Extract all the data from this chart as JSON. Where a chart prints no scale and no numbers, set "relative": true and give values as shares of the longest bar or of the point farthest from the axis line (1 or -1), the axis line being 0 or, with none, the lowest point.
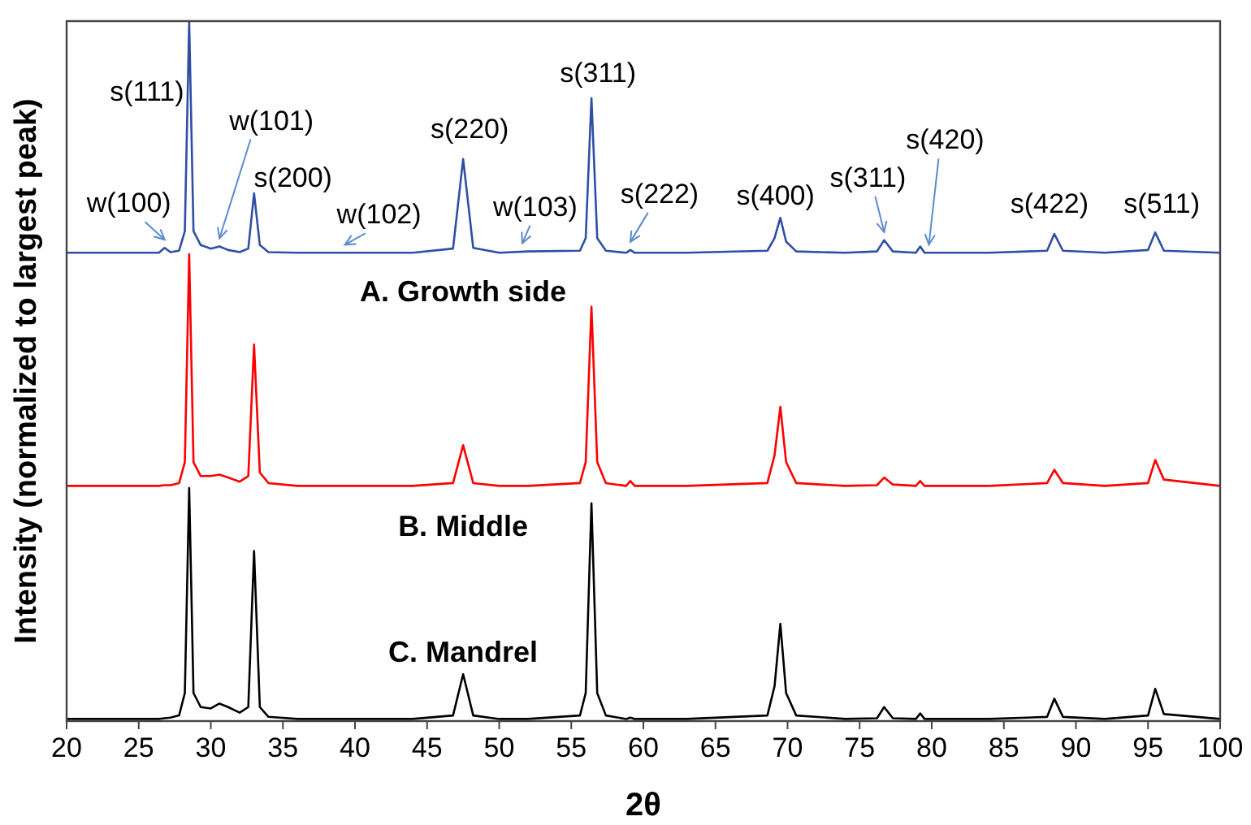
{
  "chart_data": {
    "type": "line",
    "relative": true,
    "xlabel": "2θ",
    "ylabel": "Intensity (normalized to largest peak)",
    "xlim": [
      20,
      100
    ],
    "xticks": [
      20,
      25,
      30,
      35,
      40,
      45,
      50,
      55,
      60,
      65,
      70,
      75,
      80,
      85,
      90,
      95,
      100
    ],
    "grid": false,
    "marker": "none",
    "line_style": "solid",
    "tick_labels": "x",
    "x": [
      20,
      26.4,
      26.8,
      27.2,
      27.8,
      28.2,
      28.5,
      28.8,
      29.3,
      30.0,
      30.6,
      31.2,
      32.0,
      32.6,
      33.0,
      33.4,
      34.0,
      36,
      40,
      44,
      46.8,
      47.5,
      48.2,
      50,
      52,
      55.6,
      56.0,
      56.4,
      56.8,
      57.4,
      58.8,
      59.1,
      59.4,
      63,
      68.6,
      69.1,
      69.5,
      69.9,
      70.6,
      74,
      76.2,
      76.7,
      77.3,
      78.9,
      79.2,
      79.5,
      84,
      88.0,
      88.5,
      89.1,
      92,
      95.0,
      95.5,
      96.1,
      100
    ],
    "series": [
      {
        "name": "A.  Growth side",
        "color": "#2e4fa3",
        "values": [
          0.669,
          0.669,
          0.676,
          0.67,
          0.672,
          0.7,
          1.0,
          0.7,
          0.68,
          0.675,
          0.678,
          0.673,
          0.67,
          0.675,
          0.754,
          0.68,
          0.67,
          0.669,
          0.669,
          0.669,
          0.675,
          0.803,
          0.676,
          0.669,
          0.671,
          0.672,
          0.69,
          0.89,
          0.69,
          0.672,
          0.669,
          0.673,
          0.669,
          0.669,
          0.672,
          0.69,
          0.719,
          0.685,
          0.671,
          0.669,
          0.671,
          0.687,
          0.671,
          0.669,
          0.678,
          0.669,
          0.669,
          0.672,
          0.696,
          0.672,
          0.669,
          0.673,
          0.698,
          0.672,
          0.669
        ]
      },
      {
        "name": "B.  Middle",
        "color": "#ff0000",
        "values": [
          0.336,
          0.336,
          0.337,
          0.337,
          0.34,
          0.37,
          0.667,
          0.37,
          0.35,
          0.35,
          0.352,
          0.348,
          0.342,
          0.35,
          0.538,
          0.355,
          0.34,
          0.336,
          0.336,
          0.336,
          0.34,
          0.394,
          0.34,
          0.336,
          0.336,
          0.34,
          0.37,
          0.592,
          0.37,
          0.34,
          0.336,
          0.343,
          0.336,
          0.336,
          0.34,
          0.38,
          0.449,
          0.37,
          0.34,
          0.336,
          0.337,
          0.348,
          0.338,
          0.336,
          0.343,
          0.336,
          0.336,
          0.34,
          0.359,
          0.34,
          0.336,
          0.34,
          0.373,
          0.345,
          0.336
        ]
      },
      {
        "name": "C.  Mandrel",
        "color": "#000000",
        "values": [
          0.003,
          0.003,
          0.004,
          0.005,
          0.008,
          0.04,
          0.333,
          0.04,
          0.02,
          0.018,
          0.025,
          0.02,
          0.012,
          0.02,
          0.243,
          0.02,
          0.006,
          0.003,
          0.003,
          0.003,
          0.008,
          0.067,
          0.008,
          0.003,
          0.003,
          0.008,
          0.04,
          0.311,
          0.04,
          0.008,
          0.003,
          0.005,
          0.003,
          0.003,
          0.008,
          0.05,
          0.139,
          0.04,
          0.008,
          0.003,
          0.004,
          0.02,
          0.004,
          0.003,
          0.011,
          0.003,
          0.003,
          0.006,
          0.032,
          0.006,
          0.003,
          0.008,
          0.046,
          0.01,
          0.003
        ]
      }
    ],
    "annotations": [
      {
        "text": "w(100)",
        "x": 26.8,
        "y": 0.676
      },
      {
        "text": "s(111)",
        "x": 28.5,
        "y": 1.0
      },
      {
        "text": "w(101)",
        "x": 30.6,
        "y": 0.678
      },
      {
        "text": "s(200)",
        "x": 33.0,
        "y": 0.754
      },
      {
        "text": "w(102)",
        "x": 39.3,
        "y": 0.669
      },
      {
        "text": "s(220)",
        "x": 47.5,
        "y": 0.803
      },
      {
        "text": "w(103)",
        "x": 51.6,
        "y": 0.671
      },
      {
        "text": "s(311)",
        "x": 56.4,
        "y": 0.89
      },
      {
        "text": "s(222)",
        "x": 59.1,
        "y": 0.673
      },
      {
        "text": "s(400)",
        "x": 69.5,
        "y": 0.719
      },
      {
        "text": "s(311)",
        "x": 76.7,
        "y": 0.687
      },
      {
        "text": "s(420)",
        "x": 79.8,
        "y": 0.669
      },
      {
        "text": "s(422)",
        "x": 88.5,
        "y": 0.696
      },
      {
        "text": "s(511)",
        "x": 95.5,
        "y": 0.698
      }
    ]
  }
}
